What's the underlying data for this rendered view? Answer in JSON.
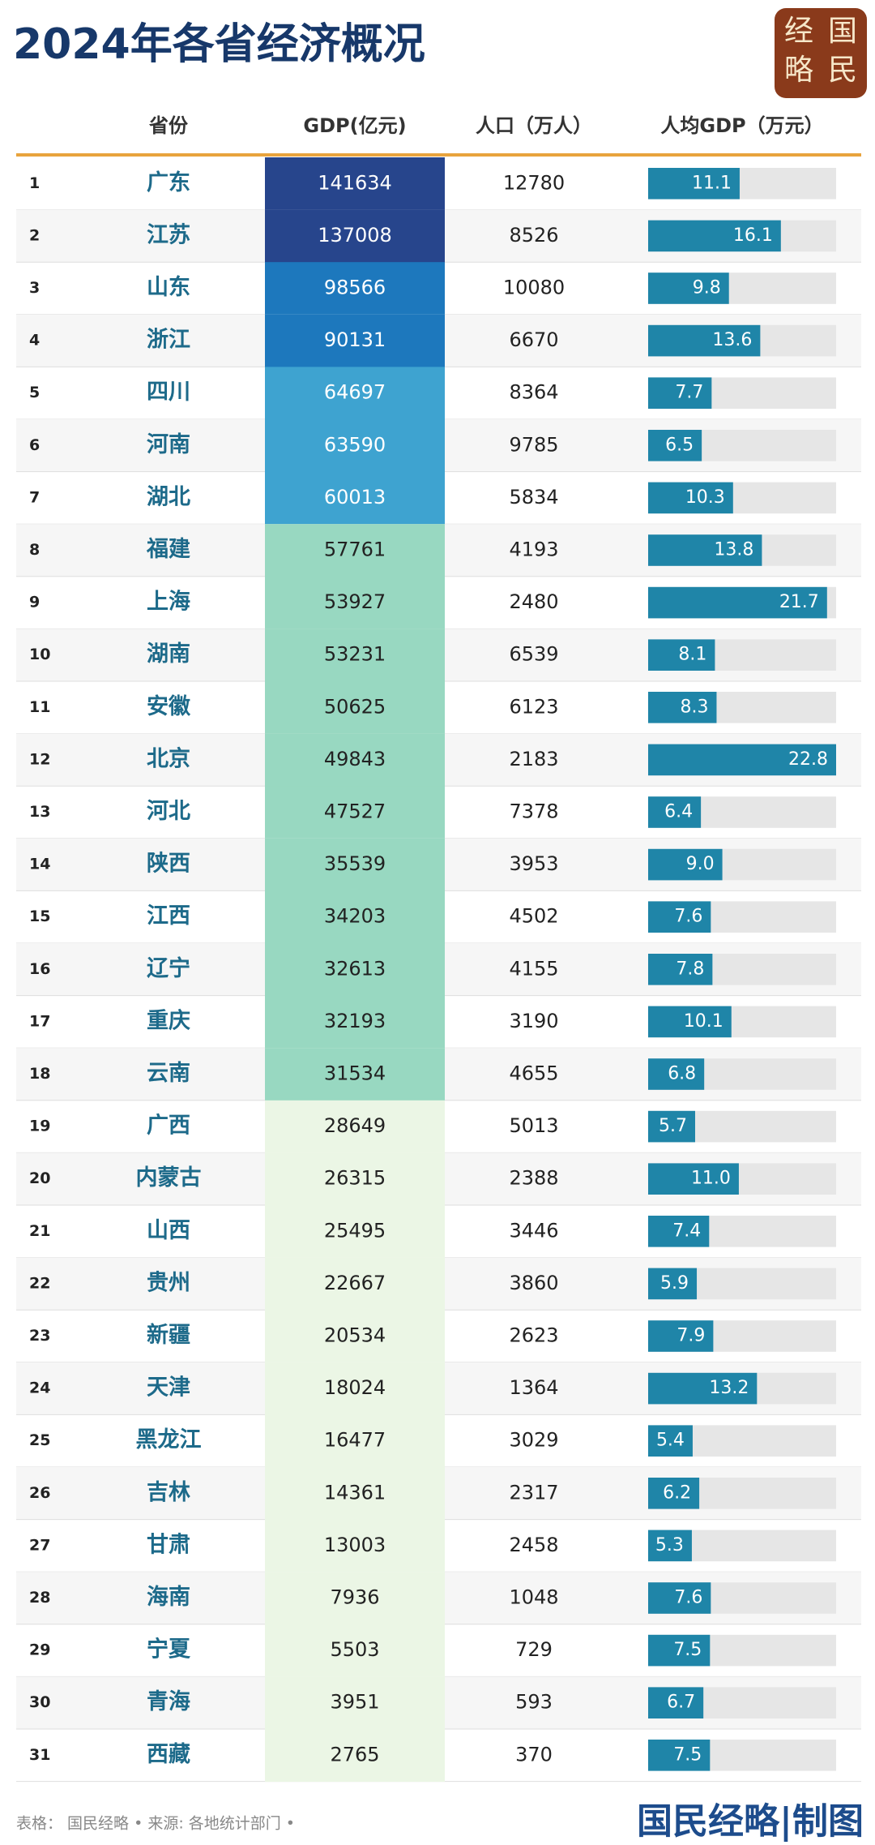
{
  "title": "2024年各省经济概况",
  "logo": [
    "经",
    "国",
    "略",
    "民"
  ],
  "table": {
    "header": [
      "省份",
      "GDP(亿元)",
      "人口（万人）",
      "人均GDP（万元）"
    ],
    "bar_color": "#1f85a8",
    "track_color": "#e6e6e6",
    "rows": [
      {
        "rank": 1,
        "province": "广东",
        "gdp": 141634,
        "population": 12780,
        "per_capita": 11.1,
        "gdp_color": "#27458c"
      },
      {
        "rank": 2,
        "province": "江苏",
        "gdp": 137008,
        "population": 8526,
        "per_capita": 16.1,
        "gdp_color": "#27458c"
      },
      {
        "rank": 3,
        "province": "山东",
        "gdp": 98566,
        "population": 10080,
        "per_capita": 9.8,
        "gdp_color": "#1d78bd"
      },
      {
        "rank": 4,
        "province": "浙江",
        "gdp": 90131,
        "population": 6670,
        "per_capita": 13.6,
        "gdp_color": "#1d78bd"
      },
      {
        "rank": 5,
        "province": "四川",
        "gdp": 64697,
        "population": 8364,
        "per_capita": 7.7,
        "gdp_color": "#3ea3d0"
      },
      {
        "rank": 6,
        "province": "河南",
        "gdp": 63590,
        "population": 9785,
        "per_capita": 6.5,
        "gdp_color": "#3ea3d0"
      },
      {
        "rank": 7,
        "province": "湖北",
        "gdp": 60013,
        "population": 5834,
        "per_capita": 10.3,
        "gdp_color": "#3ea3d0"
      },
      {
        "rank": 8,
        "province": "福建",
        "gdp": 57761,
        "population": 4193,
        "per_capita": 13.8,
        "gdp_color": "#98d8c1"
      },
      {
        "rank": 9,
        "province": "上海",
        "gdp": 53927,
        "population": 2480,
        "per_capita": 21.7,
        "gdp_color": "#98d8c1"
      },
      {
        "rank": 10,
        "province": "湖南",
        "gdp": 53231,
        "population": 6539,
        "per_capita": 8.1,
        "gdp_color": "#98d8c1"
      },
      {
        "rank": 11,
        "province": "安徽",
        "gdp": 50625,
        "population": 6123,
        "per_capita": 8.3,
        "gdp_color": "#98d8c1"
      },
      {
        "rank": 12,
        "province": "北京",
        "gdp": 49843,
        "population": 2183,
        "per_capita": 22.8,
        "gdp_color": "#98d8c1"
      },
      {
        "rank": 13,
        "province": "河北",
        "gdp": 47527,
        "population": 7378,
        "per_capita": 6.4,
        "gdp_color": "#98d8c1"
      },
      {
        "rank": 14,
        "province": "陕西",
        "gdp": 35539,
        "population": 3953,
        "per_capita": 9,
        "per_capita_label": "9.0",
        "gdp_color": "#98d8c1"
      },
      {
        "rank": 15,
        "province": "江西",
        "gdp": 34203,
        "population": 4502,
        "per_capita": 7.6,
        "gdp_color": "#98d8c1"
      },
      {
        "rank": 16,
        "province": "辽宁",
        "gdp": 32613,
        "population": 4155,
        "per_capita": 7.8,
        "gdp_color": "#98d8c1"
      },
      {
        "rank": 17,
        "province": "重庆",
        "gdp": 32193,
        "population": 3190,
        "per_capita": 10.1,
        "gdp_color": "#98d8c1"
      },
      {
        "rank": 18,
        "province": "云南",
        "gdp": 31534,
        "population": 4655,
        "per_capita": 6.8,
        "gdp_color": "#98d8c1"
      },
      {
        "rank": 19,
        "province": "广西",
        "gdp": 28649,
        "population": 5013,
        "per_capita": 5.7,
        "gdp_color": "#ebf6e5"
      },
      {
        "rank": 20,
        "province": "内蒙古",
        "gdp": 26315,
        "population": 2388,
        "per_capita": 11,
        "per_capita_label": "11.0",
        "gdp_color": "#ebf6e5"
      },
      {
        "rank": 21,
        "province": "山西",
        "gdp": 25495,
        "population": 3446,
        "per_capita": 7.4,
        "gdp_color": "#ebf6e5"
      },
      {
        "rank": 22,
        "province": "贵州",
        "gdp": 22667,
        "population": 3860,
        "per_capita": 5.9,
        "gdp_color": "#ebf6e5"
      },
      {
        "rank": 23,
        "province": "新疆",
        "gdp": 20534,
        "population": 2623,
        "per_capita": 7.9,
        "gdp_color": "#ebf6e5"
      },
      {
        "rank": 24,
        "province": "天津",
        "gdp": 18024,
        "population": 1364,
        "per_capita": 13.2,
        "gdp_color": "#ebf6e5"
      },
      {
        "rank": 25,
        "province": "黑龙江",
        "gdp": 16477,
        "population": 3029,
        "per_capita": 5.4,
        "gdp_color": "#ebf6e5"
      },
      {
        "rank": 26,
        "province": "吉林",
        "gdp": 14361,
        "population": 2317,
        "per_capita": 6.2,
        "gdp_color": "#ebf6e5"
      },
      {
        "rank": 27,
        "province": "甘肃",
        "gdp": 13003,
        "population": 2458,
        "per_capita": 5.3,
        "gdp_color": "#ebf6e5"
      },
      {
        "rank": 28,
        "province": "海南",
        "gdp": 7936,
        "population": 1048,
        "per_capita": 7.6,
        "gdp_color": "#ebf6e5"
      },
      {
        "rank": 29,
        "province": "宁夏",
        "gdp": 5503,
        "population": 729,
        "per_capita": 7.5,
        "gdp_color": "#ebf6e5"
      },
      {
        "rank": 30,
        "province": "青海",
        "gdp": 3951,
        "population": 593,
        "per_capita": 6.7,
        "gdp_color": "#ebf6e5"
      },
      {
        "rank": 31,
        "province": "西藏",
        "gdp": 2765,
        "population": 370,
        "per_capita": 7.5,
        "gdp_color": "#ebf6e5"
      }
    ]
  },
  "footer": {
    "source": "表格： 国民经略 • 来源: 各地统计部门 •",
    "brand": "国民经略|制图"
  }
}
